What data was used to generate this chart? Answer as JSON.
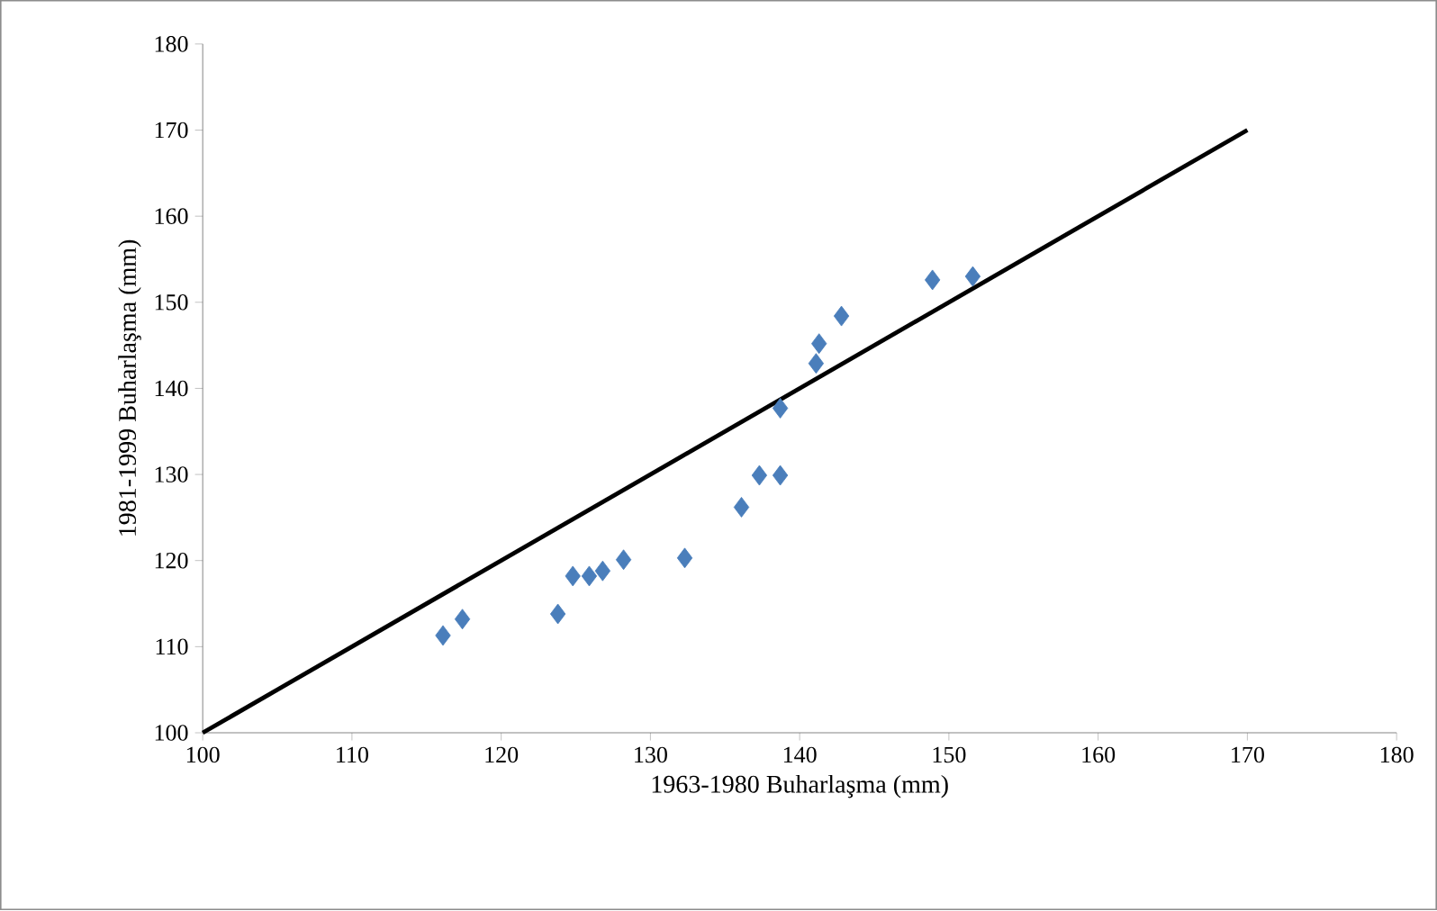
{
  "chart_data": {
    "type": "scatter",
    "xlabel": "1963-1980 Buharlaşma (mm)",
    "ylabel": "1981-1999 Buharlaşma (mm)",
    "xlim": [
      100,
      180
    ],
    "ylim": [
      100,
      180
    ],
    "xticks": [
      100,
      110,
      120,
      130,
      140,
      150,
      160,
      170,
      180
    ],
    "yticks": [
      100,
      110,
      120,
      130,
      140,
      150,
      160,
      170,
      180
    ],
    "grid": false,
    "series": [
      {
        "marker": "diamond",
        "color": "#4a7ebb",
        "x": [
          116.1,
          117.4,
          123.8,
          124.8,
          125.9,
          126.8,
          128.2,
          132.3,
          136.1,
          137.3,
          138.7,
          138.7,
          141.1,
          141.3,
          142.8,
          148.9,
          151.6
        ],
        "values": [
          111.3,
          113.2,
          113.8,
          118.2,
          118.2,
          118.8,
          120.1,
          120.3,
          126.2,
          129.9,
          129.9,
          137.7,
          142.9,
          145.2,
          148.4,
          152.6,
          153.0
        ]
      },
      {
        "type": "line",
        "marker": "none",
        "line_style": "solid",
        "color": "#000000",
        "x": [
          100,
          170
        ],
        "values": [
          100,
          170
        ]
      }
    ]
  }
}
